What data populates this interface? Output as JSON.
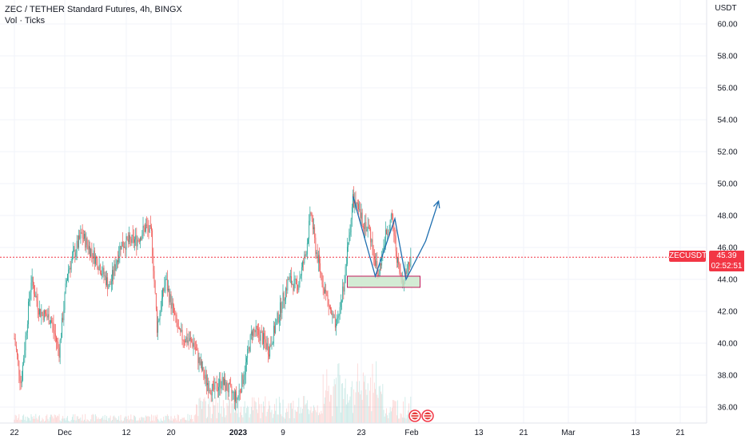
{
  "header": {
    "title": "ZEC / TETHER Standard Futures, 4h, BINGX",
    "subtitle": "Vol · Ticks"
  },
  "price_tag": {
    "symbol": "ZECUSDT",
    "price": "45.39",
    "countdown": "02:52:51"
  },
  "colors": {
    "up": "#26a69a",
    "down": "#ef5350",
    "grid": "#f0f3fa",
    "price_line": "#f23645",
    "drawing": "#1f6fb0",
    "zone_fill": "#c8e6c9",
    "zone_border": "#c2185b"
  },
  "chart_data": {
    "type": "candlestick",
    "y_axis": {
      "unit_label": "USDT",
      "range": [
        35.5,
        61.0
      ],
      "ticks": [
        "36.00",
        "38.00",
        "40.00",
        "42.00",
        "44.00",
        "46.00",
        "48.00",
        "50.00",
        "52.00",
        "54.00",
        "56.00",
        "58.00",
        "60.00"
      ]
    },
    "x_axis": {
      "ticks": [
        {
          "label": "22",
          "day": 0,
          "bold": false
        },
        {
          "label": "Dec",
          "day": 9,
          "bold": false
        },
        {
          "label": "12",
          "day": 20,
          "bold": false
        },
        {
          "label": "20",
          "day": 28,
          "bold": false
        },
        {
          "label": "2023",
          "day": 40,
          "bold": true
        },
        {
          "label": "9",
          "day": 48,
          "bold": false
        },
        {
          "label": "23",
          "day": 62,
          "bold": false
        },
        {
          "label": "Feb",
          "day": 71,
          "bold": false
        },
        {
          "label": "13",
          "day": 83,
          "bold": false
        },
        {
          "label": "21",
          "day": 91,
          "bold": false
        },
        {
          "label": "Mar",
          "day": 99,
          "bold": false
        },
        {
          "label": "13",
          "day": 111,
          "bold": false
        },
        {
          "label": "21",
          "day": 119,
          "bold": false
        }
      ]
    },
    "price_anchors": [
      [
        0,
        40.3
      ],
      [
        1.2,
        37.5
      ],
      [
        3,
        44.0
      ],
      [
        4.5,
        42.0
      ],
      [
        6.5,
        41.5
      ],
      [
        8,
        39.5
      ],
      [
        9.5,
        44.5
      ],
      [
        12,
        46.8
      ],
      [
        15,
        45.0
      ],
      [
        17,
        43.5
      ],
      [
        19,
        46.2
      ],
      [
        22,
        46.5
      ],
      [
        23.5,
        47.3
      ],
      [
        24.5,
        46.8
      ],
      [
        25.5,
        41.0
      ],
      [
        27,
        44.0
      ],
      [
        28,
        42.5
      ],
      [
        29.5,
        40.5
      ],
      [
        32,
        40.0
      ],
      [
        34,
        37.8
      ],
      [
        35.5,
        37.0
      ],
      [
        37,
        37.6
      ],
      [
        38.5,
        37.0
      ],
      [
        39.8,
        36.5
      ],
      [
        41,
        38.0
      ],
      [
        42.5,
        40.8
      ],
      [
        44,
        40.5
      ],
      [
        45.5,
        39.6
      ],
      [
        47,
        41.5
      ],
      [
        49,
        44.0
      ],
      [
        50.5,
        43.5
      ],
      [
        52,
        45.5
      ],
      [
        53,
        48.2
      ],
      [
        53.8,
        46.0
      ],
      [
        55,
        44.0
      ],
      [
        56.5,
        42.0
      ],
      [
        57.5,
        40.8
      ],
      [
        59,
        44.0
      ],
      [
        60.5,
        49.0
      ],
      [
        62,
        47.8
      ],
      [
        63.5,
        47.0
      ],
      [
        65,
        44.2
      ],
      [
        66.5,
        47.0
      ],
      [
        67.5,
        47.8
      ],
      [
        68.5,
        45.0
      ],
      [
        69.2,
        43.8
      ],
      [
        70,
        44.5
      ],
      [
        70.8,
        45.39
      ]
    ],
    "last_price": 45.39,
    "support_zone": {
      "day_start": 59.5,
      "day_end": 72.5,
      "price_low": 43.5,
      "price_high": 44.2
    },
    "pattern_path": [
      [
        60.5,
        49.2
      ],
      [
        64.5,
        44.2
      ],
      [
        68,
        47.8
      ],
      [
        70,
        44.0
      ],
      [
        73.5,
        46.4
      ],
      [
        75.8,
        48.9
      ]
    ],
    "candles_per_day": 6
  }
}
